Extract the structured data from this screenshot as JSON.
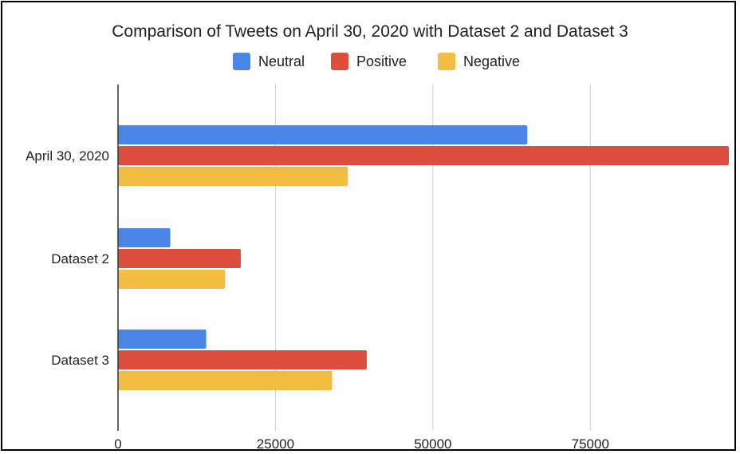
{
  "chart_data": {
    "type": "bar",
    "orientation": "horizontal",
    "title": "Comparison of Tweets on April 30, 2020 with Dataset 2 and Dataset 3",
    "categories": [
      "April 30, 2020",
      "Dataset 2",
      "Dataset 3"
    ],
    "series": [
      {
        "name": "Neutral",
        "color": "#4a86e8",
        "values": [
          65000,
          8300,
          14000
        ]
      },
      {
        "name": "Positive",
        "color": "#dd4e3c",
        "values": [
          97000,
          19500,
          39500
        ]
      },
      {
        "name": "Negative",
        "color": "#f2bd42",
        "values": [
          36500,
          17000,
          34000
        ]
      }
    ],
    "xlim": [
      0,
      97000
    ],
    "x_ticks": [
      0,
      25000,
      50000,
      75000
    ],
    "x_tick_labels": [
      "0",
      "25000",
      "50000",
      "75000"
    ],
    "grid": true,
    "legend_position": "top"
  }
}
